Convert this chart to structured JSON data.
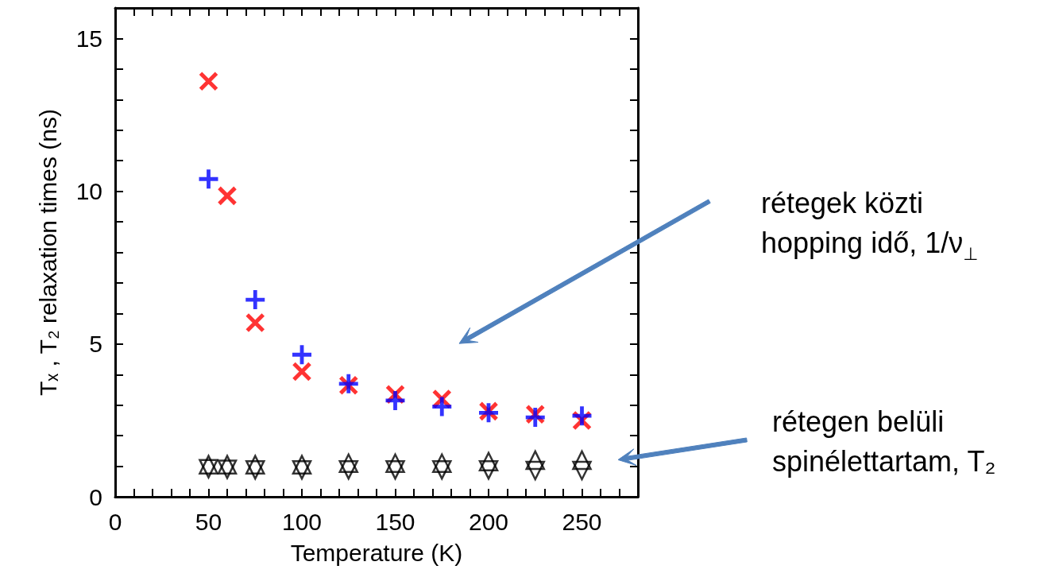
{
  "chart_data": {
    "type": "scatter",
    "xlabel": "Temperature (K)",
    "ylabel": "Tₓ , T₂ relaxation times (ns)",
    "xlim": [
      0,
      280
    ],
    "ylim": [
      0,
      16
    ],
    "xticks": [
      0,
      {
        "value": 10,
        "label": null
      },
      {
        "value": 20,
        "label": null
      },
      {
        "value": 30,
        "label": null
      },
      {
        "value": 40,
        "label": null
      },
      50,
      {
        "value": 60,
        "label": null
      },
      {
        "value": 70,
        "label": null
      },
      {
        "value": 80,
        "label": null
      },
      {
        "value": 90,
        "label": null
      },
      100,
      {
        "value": 110,
        "label": null
      },
      {
        "value": 120,
        "label": null
      },
      {
        "value": 130,
        "label": null
      },
      {
        "value": 140,
        "label": null
      },
      150,
      {
        "value": 160,
        "label": null
      },
      {
        "value": 170,
        "label": null
      },
      {
        "value": 180,
        "label": null
      },
      {
        "value": 190,
        "label": null
      },
      200,
      {
        "value": 210,
        "label": null
      },
      {
        "value": 220,
        "label": null
      },
      {
        "value": 230,
        "label": null
      },
      {
        "value": 240,
        "label": null
      },
      250,
      {
        "value": 260,
        "label": null
      },
      {
        "value": 270,
        "label": null
      }
    ],
    "yticks": [
      0,
      {
        "value": 1,
        "label": null
      },
      {
        "value": 2,
        "label": null
      },
      {
        "value": 3,
        "label": null
      },
      {
        "value": 4,
        "label": null
      },
      5,
      {
        "value": 6,
        "label": null
      },
      {
        "value": 7,
        "label": null
      },
      {
        "value": 8,
        "label": null
      },
      {
        "value": 9,
        "label": null
      },
      10,
      {
        "value": 11,
        "label": null
      },
      {
        "value": 12,
        "label": null
      },
      {
        "value": 13,
        "label": null
      },
      {
        "value": 14,
        "label": null
      },
      15
    ],
    "grid": false,
    "series": [
      {
        "color": "#ff0000",
        "marker": "cross",
        "x": [
          50,
          60,
          75,
          100,
          125,
          150,
          175,
          200,
          225,
          250
        ],
        "values": [
          13.6,
          9.85,
          5.7,
          4.1,
          3.65,
          3.35,
          3.2,
          2.8,
          2.7,
          2.5
        ]
      },
      {
        "color": "#0000ff",
        "x": [
          50,
          75,
          100,
          125,
          150,
          175,
          200,
          225,
          250
        ],
        "values": [
          10.4,
          6.45,
          4.65,
          3.7,
          3.15,
          2.95,
          2.75,
          2.6,
          2.65
        ]
      },
      {
        "color": "#000000",
        "marker": "triangle",
        "x": [
          50,
          60,
          75,
          100,
          125,
          150,
          175,
          200,
          225,
          250
        ],
        "values": [
          1.05,
          1.05,
          1.05,
          1.05,
          1.1,
          1.1,
          1.1,
          1.15,
          1.2,
          1.2
        ]
      },
      {
        "color": "#000000",
        "marker": "triangle-down",
        "x": [
          50,
          60,
          75,
          100,
          125,
          150,
          175,
          200,
          225,
          250
        ],
        "values": [
          0.92,
          0.9,
          0.88,
          0.88,
          0.88,
          0.88,
          0.88,
          0.88,
          0.86,
          0.86
        ]
      }
    ],
    "annotations": [
      "rétegek közti\nhopping idő, 1/ν$_{⊥}$",
      "rétegen belüli\nspinélettartam, T₂"
    ]
  }
}
